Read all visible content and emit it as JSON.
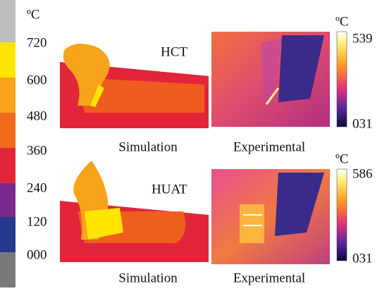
{
  "legend": {
    "unit": "ºC",
    "labels": [
      "720",
      "600",
      "480",
      "360",
      "240",
      "120",
      "000"
    ]
  },
  "panels": [
    {
      "label": "HCT",
      "simulation_caption": "Simulation",
      "experimental_caption": "Experimental",
      "scale": {
        "unit": "ºC",
        "max": "539",
        "min": "031"
      }
    },
    {
      "label": "HUAT",
      "simulation_caption": "Simulation",
      "experimental_caption": "Experimental",
      "scale": {
        "unit": "ºC",
        "max": "586",
        "min": "031"
      }
    }
  ]
}
